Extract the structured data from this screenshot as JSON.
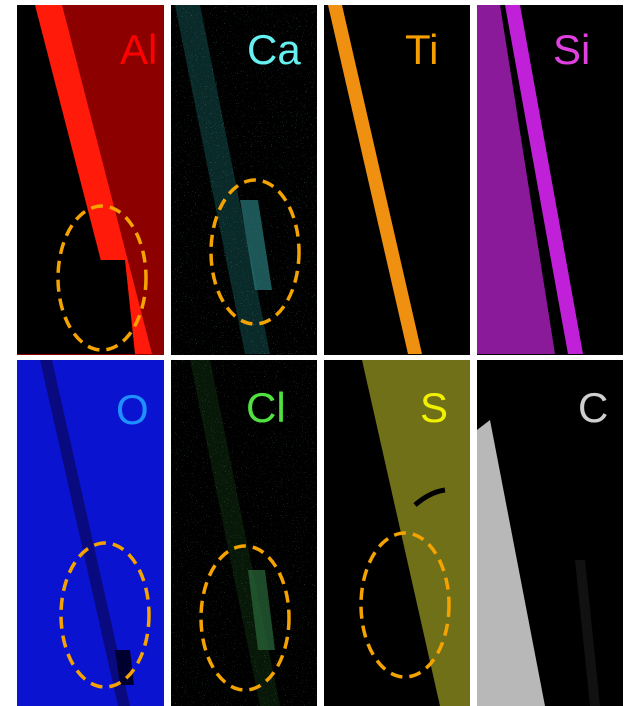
{
  "panels": [
    {
      "label": "Al"
    },
    {
      "label": "Ca"
    },
    {
      "label": "Ti"
    },
    {
      "label": "Si"
    },
    {
      "label": "O"
    },
    {
      "label": "Cl"
    },
    {
      "label": "S"
    },
    {
      "label": "C"
    }
  ]
}
